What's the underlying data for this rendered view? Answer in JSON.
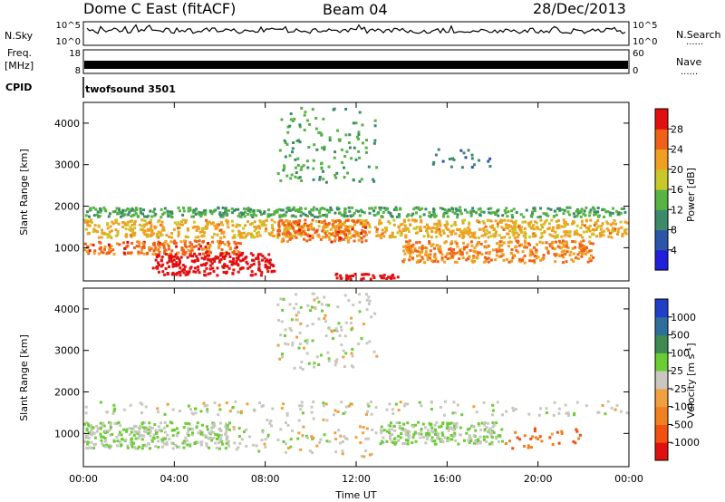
{
  "header": {
    "title": "Dome C East (fitACF)",
    "beam": "Beam 04",
    "date": "28/Dec/2013"
  },
  "summary_panels": {
    "nsky_label": "N.Sky",
    "nsky_ticks": [
      "10^5",
      "10^0"
    ],
    "nsearch_label": "N.Search",
    "nsearch_ticks": [
      "10^5",
      "10^0"
    ],
    "freq_label_top": "Freq.",
    "freq_label_unit": "[MHz]",
    "freq_ticks": [
      "18",
      "8"
    ],
    "nave_label": "Nave",
    "nave_ticks": [
      "60",
      "0"
    ],
    "dotted_marker": "......",
    "cpid_label": "CPID",
    "cpid_value": "twofsound 3501"
  },
  "axes": {
    "x_ticks": [
      "00:00",
      "04:00",
      "08:00",
      "12:00",
      "16:00",
      "20:00",
      "00:00"
    ],
    "x_label": "Time UT",
    "y_ticks": [
      "1000",
      "2000",
      "3000",
      "4000"
    ],
    "y_label": "Slant Range [km]"
  },
  "colorbars": {
    "power": {
      "label": "Power [dB]",
      "ticks": [
        "4",
        "8",
        "12",
        "16",
        "20",
        "24",
        "28"
      ],
      "colors": [
        "#1f1fdc",
        "#2a55a8",
        "#3d8a6a",
        "#56b344",
        "#c8c82a",
        "#f0a020",
        "#f06018",
        "#e01010"
      ]
    },
    "velocity": {
      "label": "Velocity [m s",
      "label_exp": "-1",
      "label_end": "]",
      "ticks": [
        "1000",
        "500",
        "100",
        "25",
        "-25",
        "-100",
        "-500",
        "-1000"
      ],
      "colors": [
        "#1f3fc8",
        "#2e6e9a",
        "#3e8a50",
        "#6ccc36",
        "#c8c8c0",
        "#f0a040",
        "#f08020",
        "#f05010",
        "#e01010"
      ]
    }
  },
  "chart_data": [
    {
      "type": "heatmap",
      "title": "Dome C East (fitACF)",
      "subtitle": "Beam 04",
      "xlabel": "Time UT",
      "ylabel": "Slant Range [km]",
      "x_range": [
        "00:00",
        "24:00"
      ],
      "ylim": [
        200,
        4500
      ],
      "colorbar": "Power [dB]",
      "colorbar_range": [
        0,
        30
      ],
      "regions": [
        {
          "x_start": 0.0,
          "x_end": 24.0,
          "y_start": 1200,
          "y_end": 1700,
          "value": 20
        },
        {
          "x_start": 0.0,
          "x_end": 7.0,
          "y_start": 800,
          "y_end": 1200,
          "value": 24
        },
        {
          "x_start": 3.0,
          "x_end": 8.5,
          "y_start": 300,
          "y_end": 900,
          "value": 30
        },
        {
          "x_start": 8.5,
          "x_end": 12.5,
          "y_start": 1100,
          "y_end": 1700,
          "value": 24
        },
        {
          "x_start": 11.0,
          "x_end": 14.0,
          "y_start": 200,
          "y_end": 400,
          "value": 30
        },
        {
          "x_start": 14.0,
          "x_end": 22.5,
          "y_start": 600,
          "y_end": 1200,
          "value": 22
        },
        {
          "x_start": 0.0,
          "x_end": 24.0,
          "y_start": 1700,
          "y_end": 2000,
          "value": 12
        },
        {
          "x_start": 8.5,
          "x_end": 13.0,
          "y_start": 2500,
          "y_end": 4400,
          "value": 12
        },
        {
          "x_start": 15.0,
          "x_end": 18.0,
          "y_start": 2900,
          "y_end": 3400,
          "value": 8
        }
      ]
    },
    {
      "type": "heatmap",
      "title": "Dome C East (fitACF)",
      "subtitle": "Beam 04",
      "xlabel": "Time UT",
      "ylabel": "Slant Range [km]",
      "x_range": [
        "00:00",
        "24:00"
      ],
      "ylim": [
        200,
        4500
      ],
      "colorbar": "Velocity [m s-1]",
      "colorbar_range": [
        -1000,
        1000
      ],
      "regions": [
        {
          "x_start": 0.0,
          "x_end": 24.0,
          "y_start": 1400,
          "y_end": 1800,
          "value": 0
        },
        {
          "x_start": 0.0,
          "x_end": 6.5,
          "y_start": 600,
          "y_end": 1300,
          "value": 100
        },
        {
          "x_start": 6.5,
          "x_end": 11.0,
          "y_start": 500,
          "y_end": 1400,
          "value": 0
        },
        {
          "x_start": 11.0,
          "x_end": 13.0,
          "y_start": 300,
          "y_end": 1200,
          "value": -100
        },
        {
          "x_start": 13.0,
          "x_end": 18.5,
          "y_start": 700,
          "y_end": 1300,
          "value": 100
        },
        {
          "x_start": 18.5,
          "x_end": 22.0,
          "y_start": 600,
          "y_end": 1200,
          "value": -500
        },
        {
          "x_start": 8.5,
          "x_end": 13.0,
          "y_start": 2500,
          "y_end": 4400,
          "value": 0
        }
      ]
    }
  ]
}
